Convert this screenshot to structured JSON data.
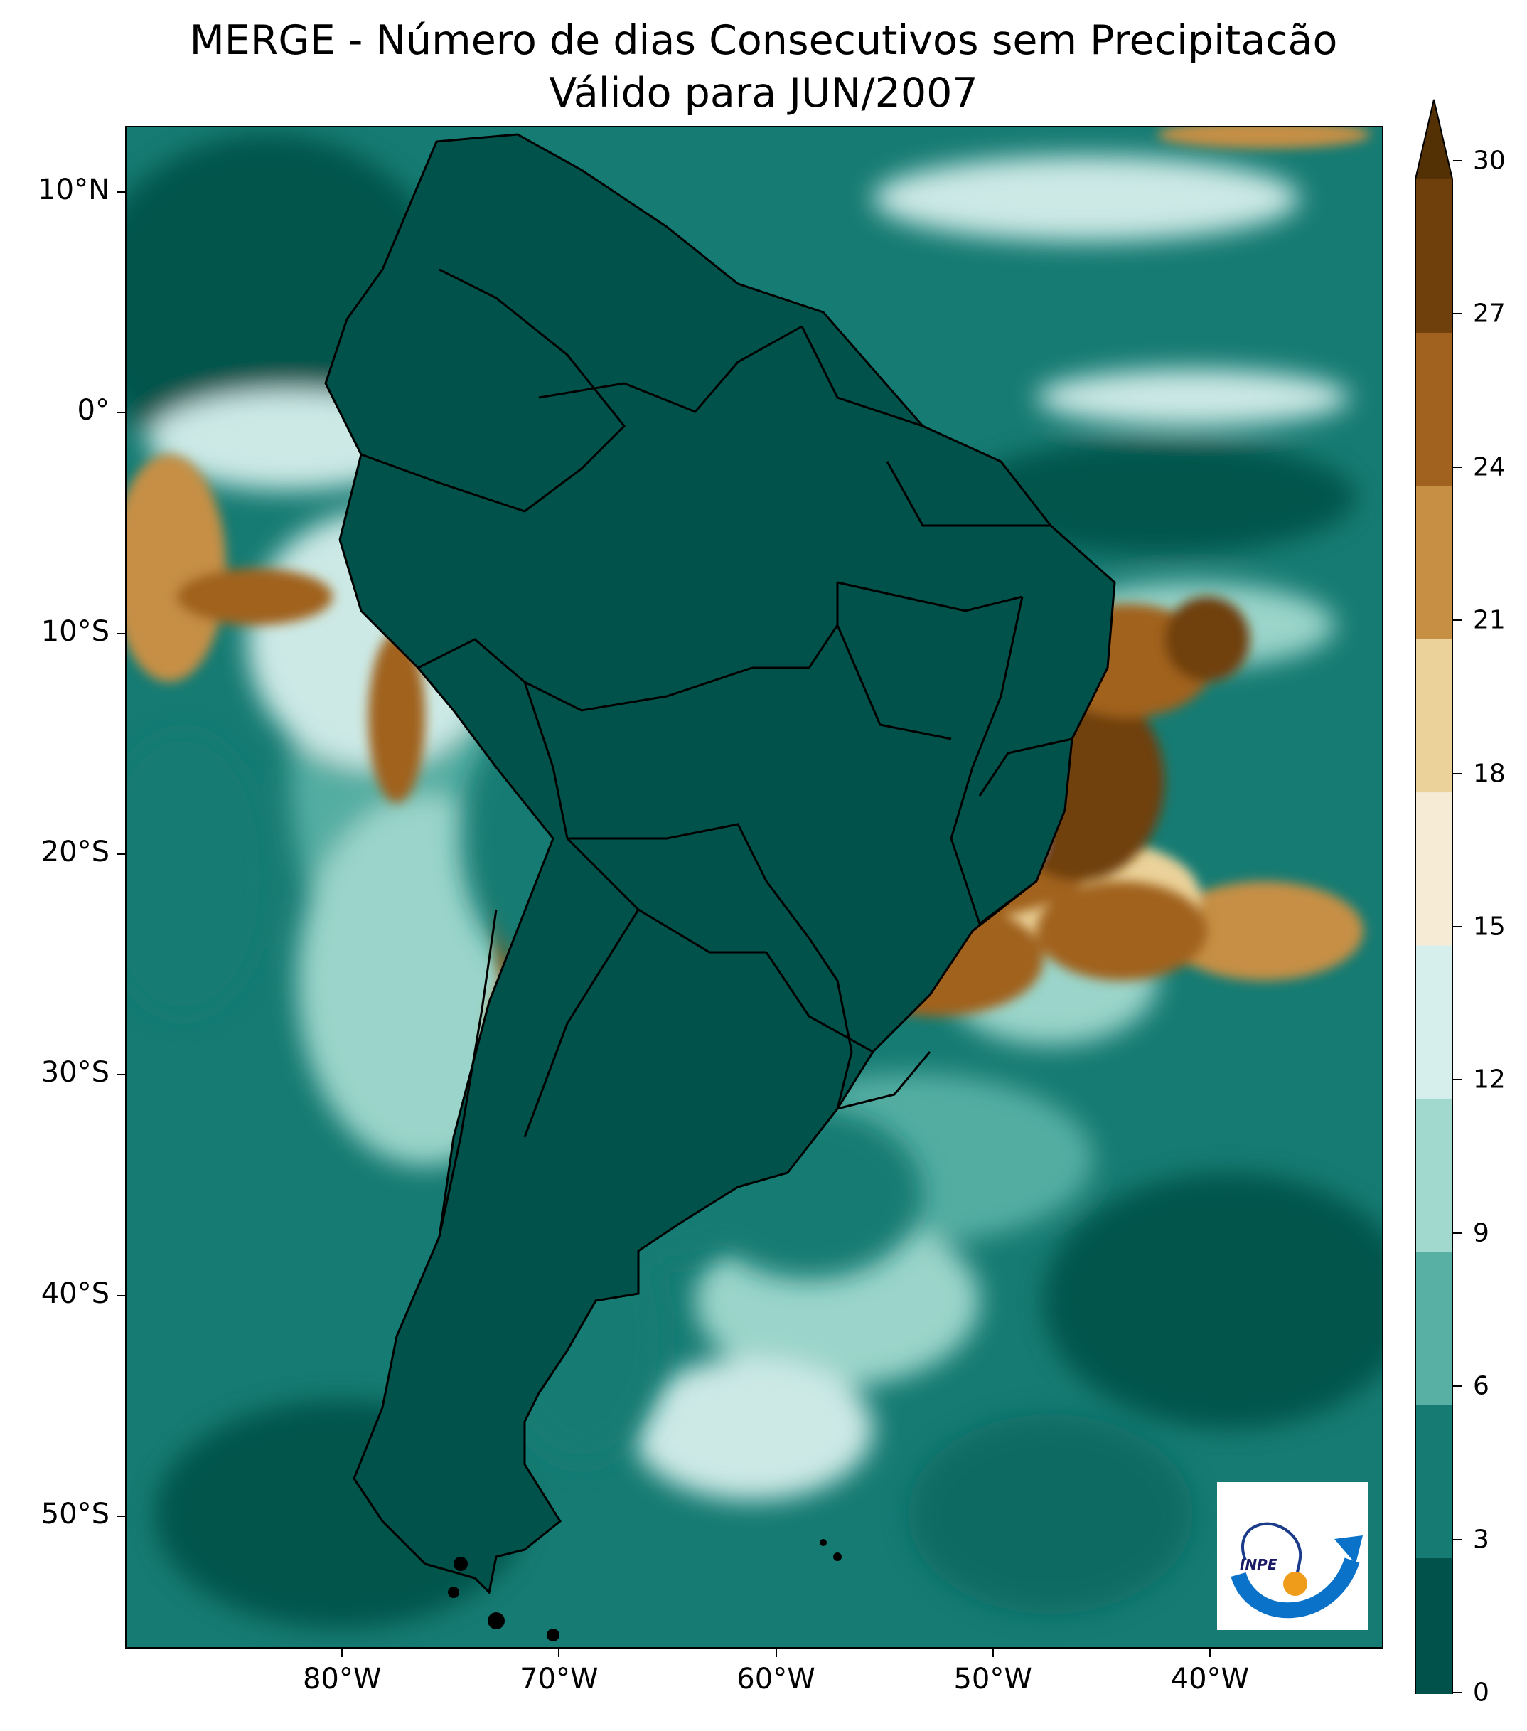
{
  "title": {
    "line1": "MERGE - Número de dias Consecutivos sem Precipitacão",
    "line2": "Válido para JUN/2007"
  },
  "map": {
    "region": "South America",
    "projection": "lat-lon",
    "lon_range": [
      -90,
      -32
    ],
    "lat_range": [
      -56,
      13
    ],
    "lat_ticks": [
      {
        "value": 10,
        "label": "10°N"
      },
      {
        "value": 0,
        "label": "0°"
      },
      {
        "value": -10,
        "label": "10°S"
      },
      {
        "value": -20,
        "label": "20°S"
      },
      {
        "value": -30,
        "label": "30°S"
      },
      {
        "value": -40,
        "label": "40°S"
      },
      {
        "value": -50,
        "label": "50°S"
      }
    ],
    "lon_ticks": [
      {
        "value": -80,
        "label": "80°W"
      },
      {
        "value": -70,
        "label": "70°W"
      },
      {
        "value": -60,
        "label": "60°W"
      },
      {
        "value": -50,
        "label": "50°W"
      },
      {
        "value": -40,
        "label": "40°W"
      }
    ],
    "boundaries": "country and Brazilian state borders in black"
  },
  "colorbar": {
    "levels": [
      0,
      3,
      6,
      9,
      12,
      15,
      18,
      21,
      24,
      27,
      30
    ],
    "labels": [
      "0",
      "3",
      "6",
      "9",
      "12",
      "15",
      "18",
      "21",
      "24",
      "27",
      "30"
    ],
    "colors": [
      "#01524a",
      "#167b73",
      "#58b0a4",
      "#a2d9cf",
      "#d6efec",
      "#f6ecd6",
      "#ebd29a",
      "#c68f44",
      "#a0621e",
      "#6f400c"
    ],
    "extend_color": "#543005",
    "extend": "max"
  },
  "logo": {
    "text": "INPE"
  }
}
